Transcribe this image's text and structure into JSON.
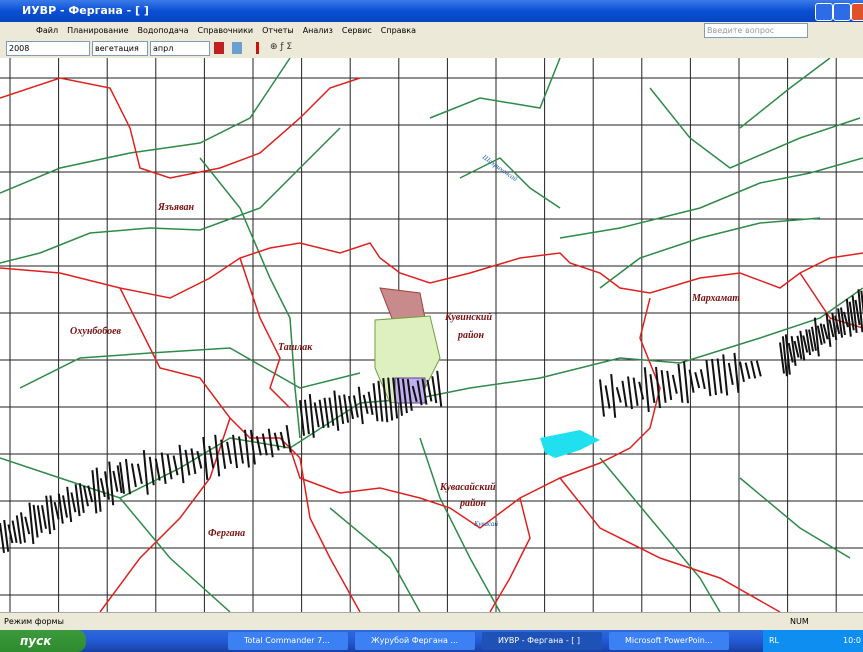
{
  "window": {
    "title": "ИУВР - Фергана - [ ]"
  },
  "menu": [
    "Файл",
    "Планирование",
    "Водоподача",
    "Справочники",
    "Отчеты",
    "Анализ",
    "Сервис",
    "Справка"
  ],
  "help_box": "Введите вопрос",
  "toolbar": {
    "year": "2008",
    "season": "вегетация",
    "month": "апрл"
  },
  "map": {
    "labels": [
      "Язъяван",
      "Охунбобоев",
      "Ташлак",
      "Кувинский",
      "район",
      "Мархамат",
      "Кувасайский",
      "район",
      "Фергана"
    ],
    "river_labels": [
      "Шахрихансай",
      "Кувасай"
    ]
  },
  "status": {
    "mode": "Режим формы",
    "num": "NUM"
  },
  "taskbar": {
    "start": "пуск",
    "tasks": [
      "Total Commander 7...",
      "Журубой Фергана ...",
      "ИУВР - Фергана - [ ]",
      "Microsoft PowerPoin..."
    ],
    "lang": "RL",
    "clock": "10:0"
  }
}
